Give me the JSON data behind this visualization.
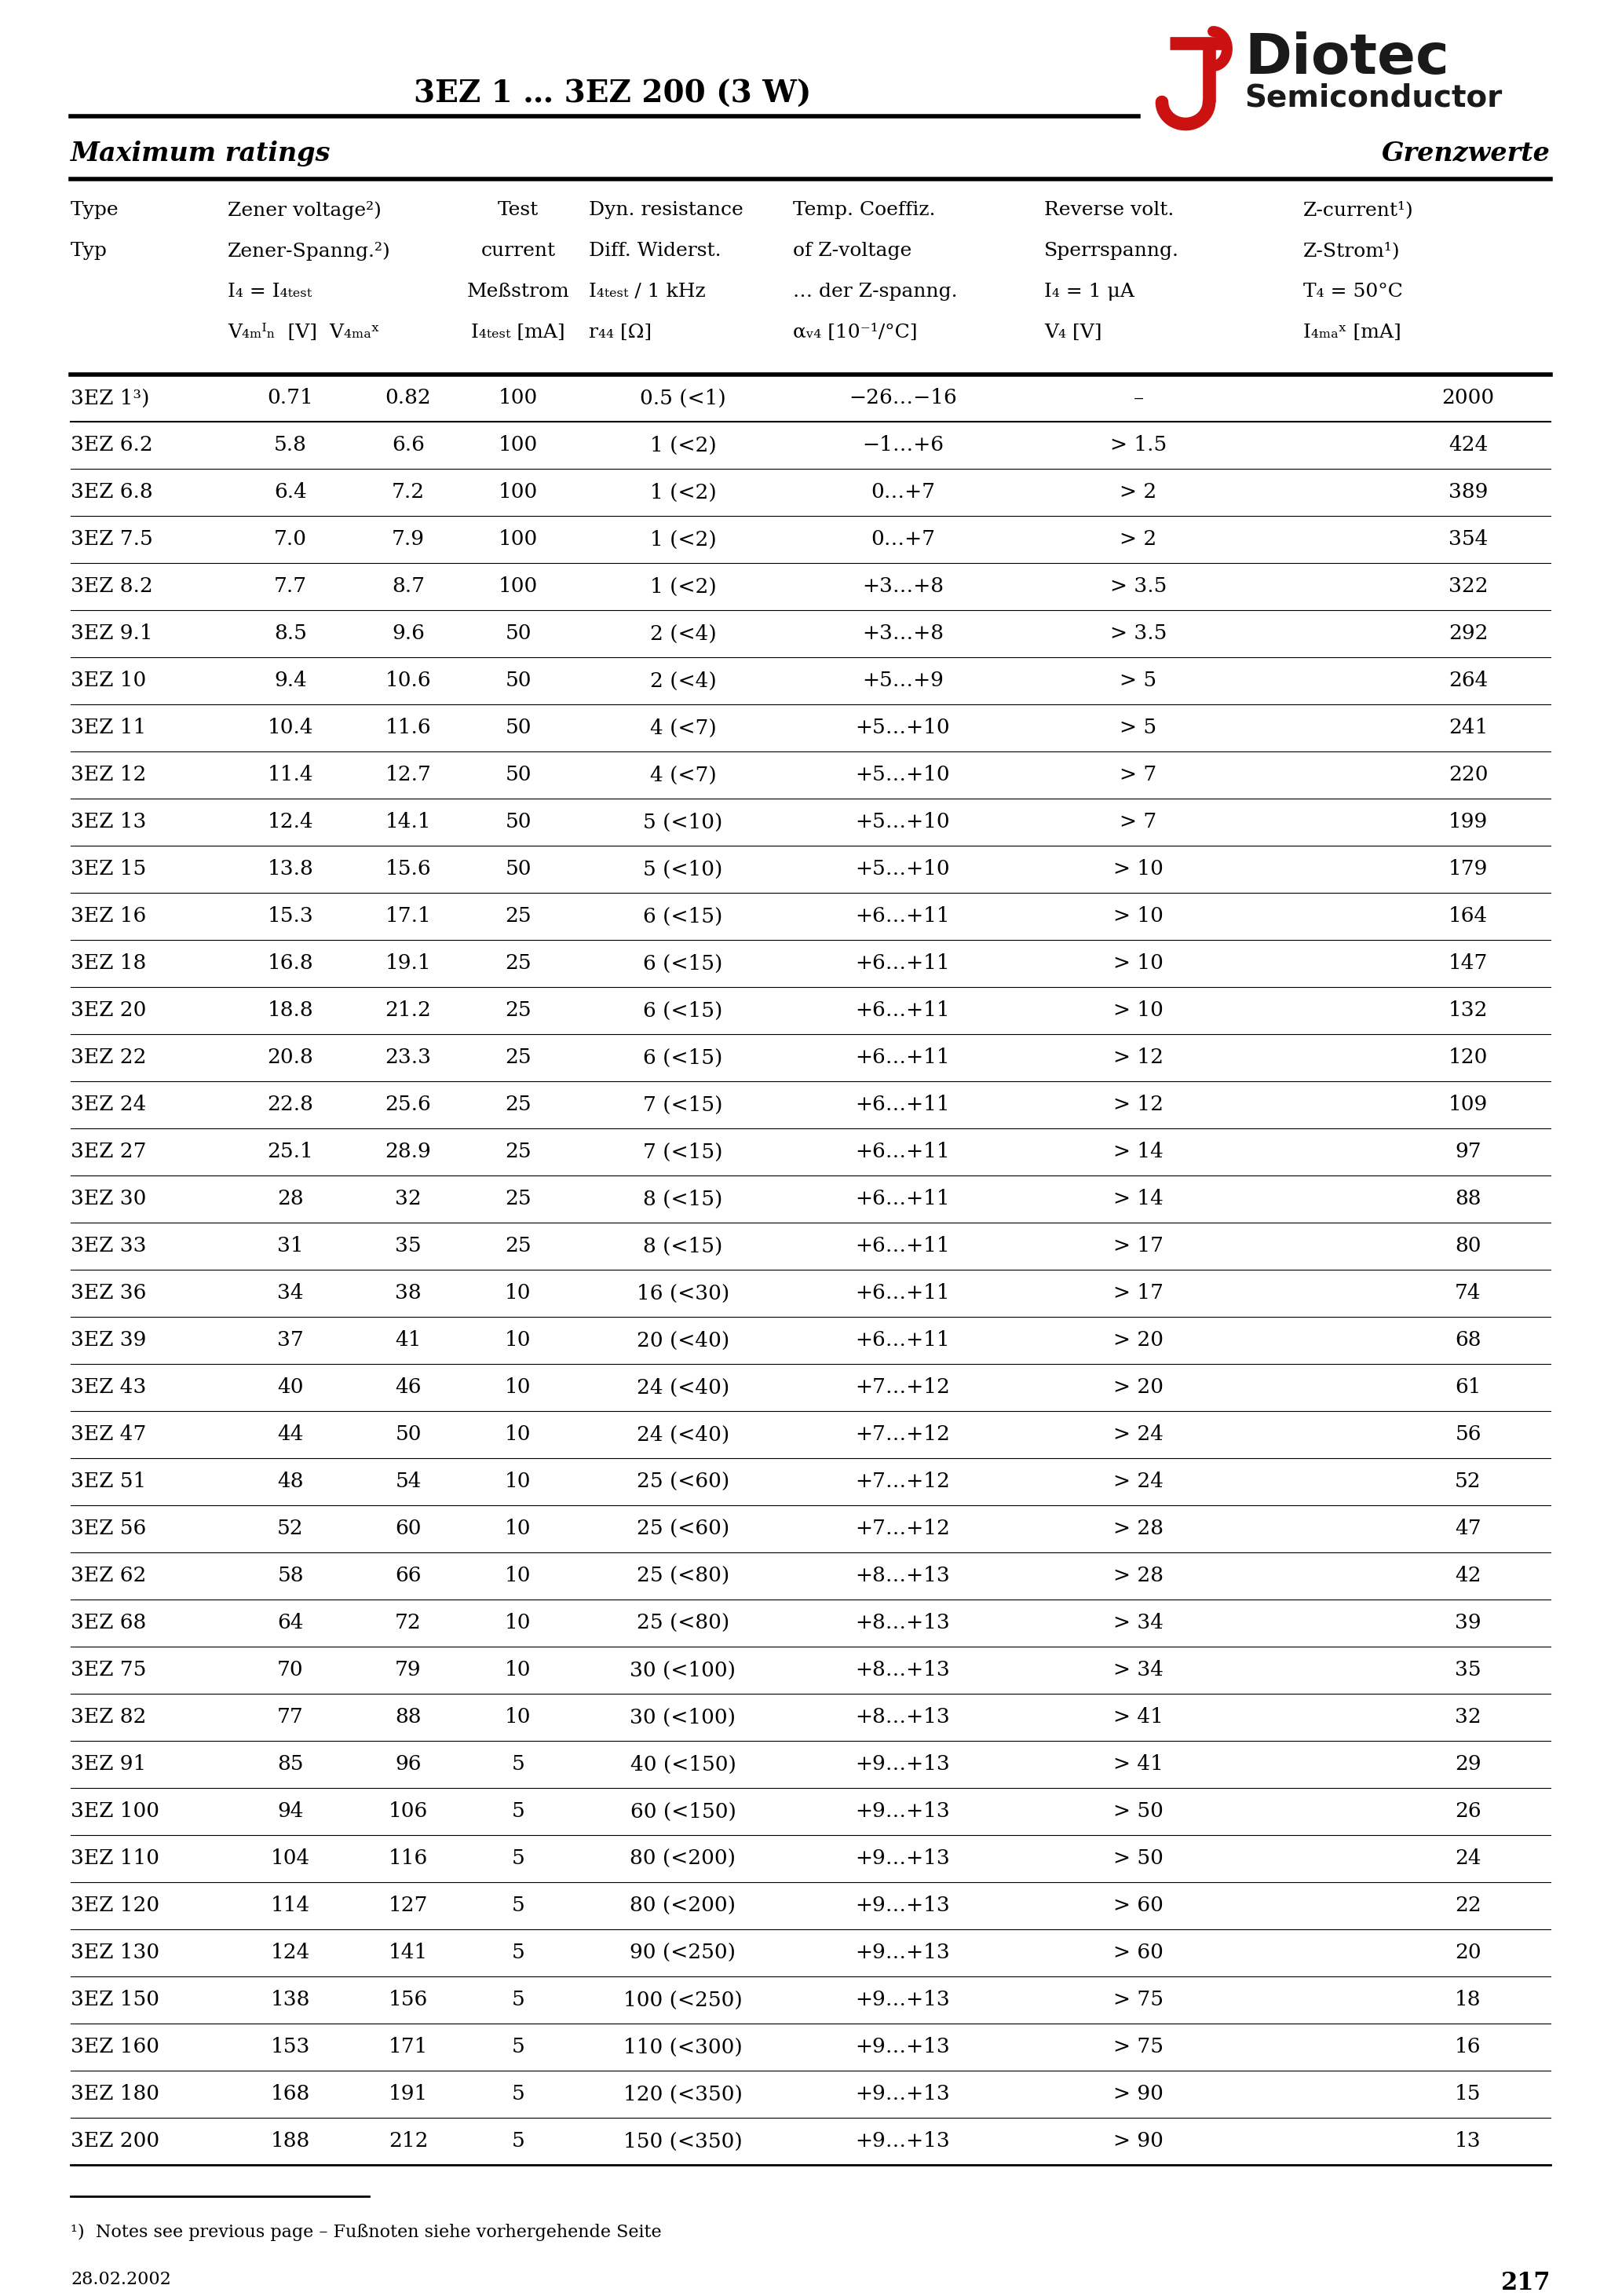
{
  "title": "3EZ 1 … 3EZ 200 (3 W)",
  "header_left": "Maximum ratings",
  "header_right": "Grenzwerte",
  "rows": [
    [
      "3EZ 1³)",
      "0.71",
      "0.82",
      "100",
      "0.5 (<1)",
      "−26…−16",
      "–",
      "2000"
    ],
    [
      "3EZ 6.2",
      "5.8",
      "6.6",
      "100",
      "1 (<2)",
      "−1…+6",
      "> 1.5",
      "424"
    ],
    [
      "3EZ 6.8",
      "6.4",
      "7.2",
      "100",
      "1 (<2)",
      "0…+7",
      "> 2",
      "389"
    ],
    [
      "3EZ 7.5",
      "7.0",
      "7.9",
      "100",
      "1 (<2)",
      "0…+7",
      "> 2",
      "354"
    ],
    [
      "3EZ 8.2",
      "7.7",
      "8.7",
      "100",
      "1 (<2)",
      "+3…+8",
      "> 3.5",
      "322"
    ],
    [
      "3EZ 9.1",
      "8.5",
      "9.6",
      "50",
      "2 (<4)",
      "+3…+8",
      "> 3.5",
      "292"
    ],
    [
      "3EZ 10",
      "9.4",
      "10.6",
      "50",
      "2 (<4)",
      "+5…+9",
      "> 5",
      "264"
    ],
    [
      "3EZ 11",
      "10.4",
      "11.6",
      "50",
      "4 (<7)",
      "+5…+10",
      "> 5",
      "241"
    ],
    [
      "3EZ 12",
      "11.4",
      "12.7",
      "50",
      "4 (<7)",
      "+5…+10",
      "> 7",
      "220"
    ],
    [
      "3EZ 13",
      "12.4",
      "14.1",
      "50",
      "5 (<10)",
      "+5…+10",
      "> 7",
      "199"
    ],
    [
      "3EZ 15",
      "13.8",
      "15.6",
      "50",
      "5 (<10)",
      "+5…+10",
      "> 10",
      "179"
    ],
    [
      "3EZ 16",
      "15.3",
      "17.1",
      "25",
      "6 (<15)",
      "+6…+11",
      "> 10",
      "164"
    ],
    [
      "3EZ 18",
      "16.8",
      "19.1",
      "25",
      "6 (<15)",
      "+6…+11",
      "> 10",
      "147"
    ],
    [
      "3EZ 20",
      "18.8",
      "21.2",
      "25",
      "6 (<15)",
      "+6…+11",
      "> 10",
      "132"
    ],
    [
      "3EZ 22",
      "20.8",
      "23.3",
      "25",
      "6 (<15)",
      "+6…+11",
      "> 12",
      "120"
    ],
    [
      "3EZ 24",
      "22.8",
      "25.6",
      "25",
      "7 (<15)",
      "+6…+11",
      "> 12",
      "109"
    ],
    [
      "3EZ 27",
      "25.1",
      "28.9",
      "25",
      "7 (<15)",
      "+6…+11",
      "> 14",
      "97"
    ],
    [
      "3EZ 30",
      "28",
      "32",
      "25",
      "8 (<15)",
      "+6…+11",
      "> 14",
      "88"
    ],
    [
      "3EZ 33",
      "31",
      "35",
      "25",
      "8 (<15)",
      "+6…+11",
      "> 17",
      "80"
    ],
    [
      "3EZ 36",
      "34",
      "38",
      "10",
      "16 (<30)",
      "+6…+11",
      "> 17",
      "74"
    ],
    [
      "3EZ 39",
      "37",
      "41",
      "10",
      "20 (<40)",
      "+6…+11",
      "> 20",
      "68"
    ],
    [
      "3EZ 43",
      "40",
      "46",
      "10",
      "24 (<40)",
      "+7…+12",
      "> 20",
      "61"
    ],
    [
      "3EZ 47",
      "44",
      "50",
      "10",
      "24 (<40)",
      "+7…+12",
      "> 24",
      "56"
    ],
    [
      "3EZ 51",
      "48",
      "54",
      "10",
      "25 (<60)",
      "+7…+12",
      "> 24",
      "52"
    ],
    [
      "3EZ 56",
      "52",
      "60",
      "10",
      "25 (<60)",
      "+7…+12",
      "> 28",
      "47"
    ],
    [
      "3EZ 62",
      "58",
      "66",
      "10",
      "25 (<80)",
      "+8…+13",
      "> 28",
      "42"
    ],
    [
      "3EZ 68",
      "64",
      "72",
      "10",
      "25 (<80)",
      "+8…+13",
      "> 34",
      "39"
    ],
    [
      "3EZ 75",
      "70",
      "79",
      "10",
      "30 (<100)",
      "+8…+13",
      "> 34",
      "35"
    ],
    [
      "3EZ 82",
      "77",
      "88",
      "10",
      "30 (<100)",
      "+8…+13",
      "> 41",
      "32"
    ],
    [
      "3EZ 91",
      "85",
      "96",
      "5",
      "40 (<150)",
      "+9…+13",
      "> 41",
      "29"
    ],
    [
      "3EZ 100",
      "94",
      "106",
      "5",
      "60 (<150)",
      "+9…+13",
      "> 50",
      "26"
    ],
    [
      "3EZ 110",
      "104",
      "116",
      "5",
      "80 (<200)",
      "+9…+13",
      "> 50",
      "24"
    ],
    [
      "3EZ 120",
      "114",
      "127",
      "5",
      "80 (<200)",
      "+9…+13",
      "> 60",
      "22"
    ],
    [
      "3EZ 130",
      "124",
      "141",
      "5",
      "90 (<250)",
      "+9…+13",
      "> 60",
      "20"
    ],
    [
      "3EZ 150",
      "138",
      "156",
      "5",
      "100 (<250)",
      "+9…+13",
      "> 75",
      "18"
    ],
    [
      "3EZ 160",
      "153",
      "171",
      "5",
      "110 (<300)",
      "+9…+13",
      "> 75",
      "16"
    ],
    [
      "3EZ 180",
      "168",
      "191",
      "5",
      "120 (<350)",
      "+9…+13",
      "> 90",
      "15"
    ],
    [
      "3EZ 200",
      "188",
      "212",
      "5",
      "150 (<350)",
      "+9…+13",
      "> 90",
      "13"
    ]
  ],
  "footnote": "¹)  Notes see previous page – Fußnoten siehe vorhergehende Seite",
  "date": "28.02.2002",
  "page_num": "217",
  "bg_color": "#ffffff",
  "text_color": "#000000",
  "logo_red": "#cc1111",
  "logo_dark": "#1a1a1a"
}
